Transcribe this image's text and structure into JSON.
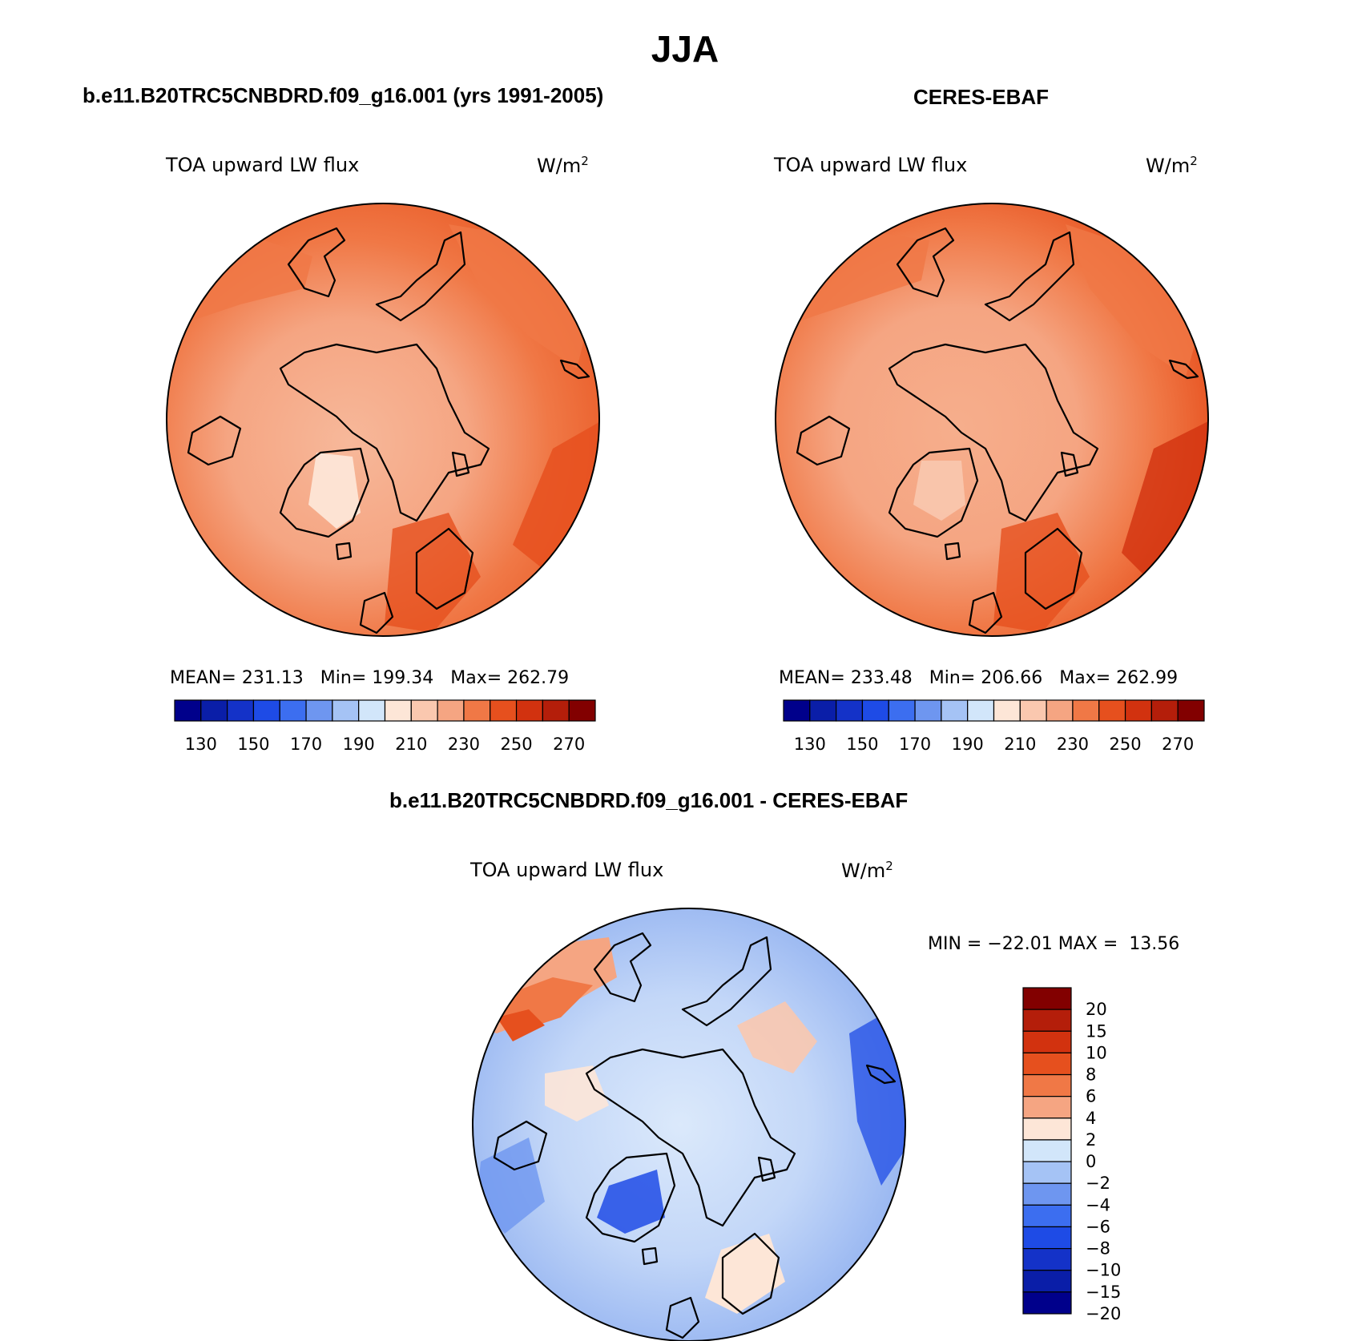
{
  "main_title": "JJA",
  "panels": [
    {
      "title": "b.e11.B20TRC5CNBDRD.f09_g16.001 (yrs 1991-2005)",
      "variable": "TOA upward LW flux",
      "units": "W/m",
      "units_exp": "2",
      "stats": {
        "mean_label": "MEAN=",
        "mean": "231.13",
        "min_label": "Min=",
        "min": "199.34",
        "max_label": "Max=",
        "max": "262.79"
      }
    },
    {
      "title": "CERES-EBAF",
      "variable": "TOA upward LW flux",
      "units": "W/m",
      "units_exp": "2",
      "stats": {
        "mean_label": "MEAN=",
        "mean": "233.48",
        "min_label": "Min=",
        "min": "206.66",
        "max_label": "Max=",
        "max": "262.99"
      }
    },
    {
      "title": "b.e11.B20TRC5CNBDRD.f09_g16.001 - CERES-EBAF",
      "variable": "TOA upward LW flux",
      "units": "W/m",
      "units_exp": "2",
      "stats": {
        "min_label": "MIN =",
        "min": "−22.01",
        "max_label": "MAX =",
        "max": "13.56"
      }
    }
  ],
  "colorbars": {
    "absolute": {
      "colors": [
        "#00008b",
        "#0a1ea8",
        "#1432c8",
        "#1e4be6",
        "#3c6ef0",
        "#6e96f0",
        "#a5c3f5",
        "#d2e6fa",
        "#fde6d7",
        "#fac8af",
        "#f5a582",
        "#f07846",
        "#e6501e",
        "#d2320f",
        "#b41e0a",
        "#820000"
      ],
      "tick_labels": [
        "130",
        "150",
        "170",
        "190",
        "210",
        "230",
        "250",
        "270"
      ]
    },
    "difference": {
      "colors": [
        "#820000",
        "#b41e0a",
        "#d2320f",
        "#e6501e",
        "#f07846",
        "#f5a582",
        "#fde6d7",
        "#d2e6fa",
        "#a5c3f5",
        "#6e96f0",
        "#3c6ef0",
        "#1e4be6",
        "#1432c8",
        "#0a1ea8",
        "#00008b"
      ],
      "tick_labels": [
        "20",
        "15",
        "10",
        "8",
        "6",
        "4",
        "2",
        "0",
        "−2",
        "−4",
        "−6",
        "−8",
        "−10",
        "−15",
        "−20"
      ]
    }
  }
}
